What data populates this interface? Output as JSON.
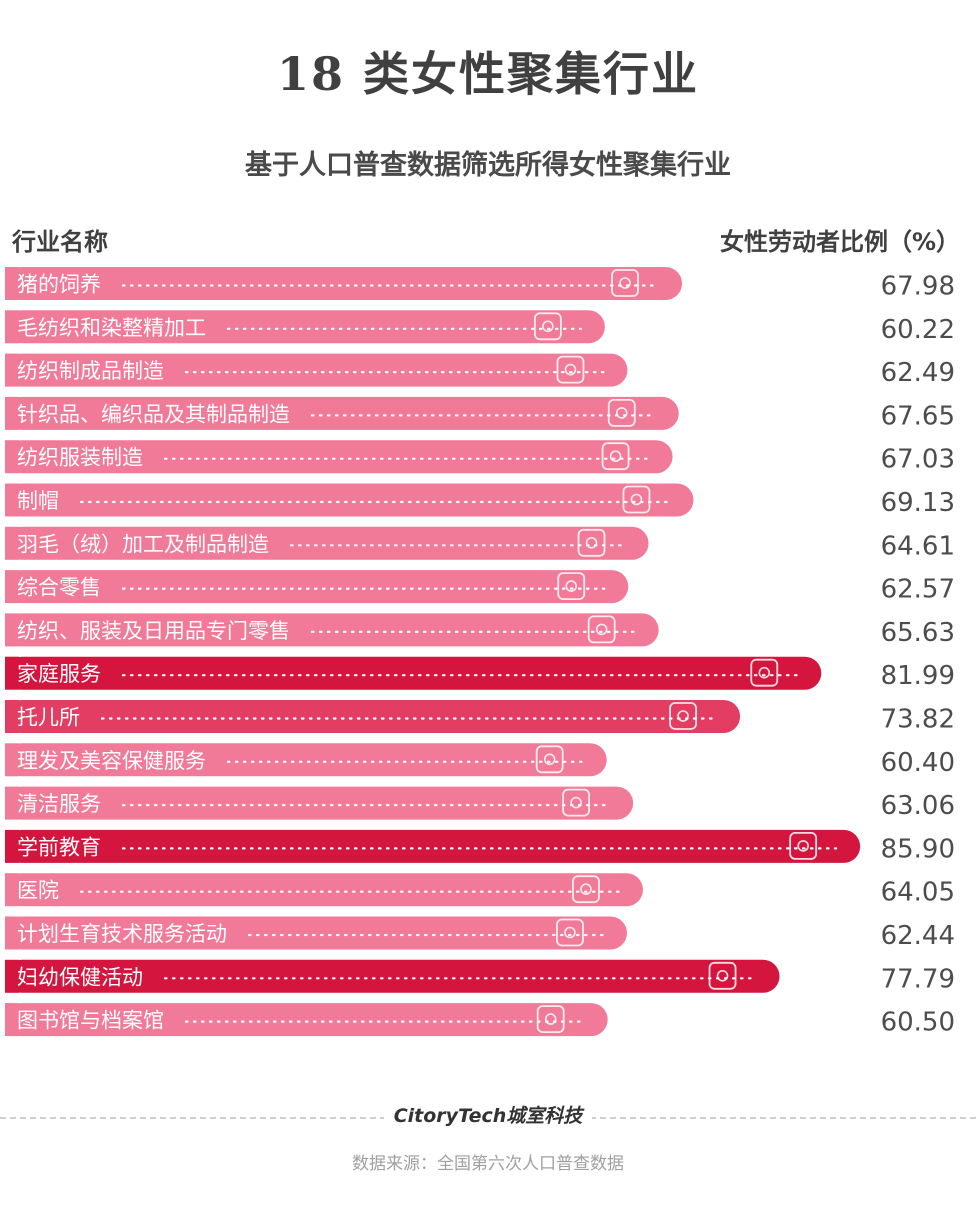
{
  "title": "18 类女性聚集行业",
  "subtitle": "基于人口普查数据筛选所得女性聚集行业",
  "column_left": "行业名称",
  "column_right": "女性劳动者比例（%）",
  "logo": "CitoryTech城室科技",
  "source": "数据来源：全国第六次人口普查数据",
  "colors": {
    "light": "#f07a97",
    "medium": "#e43d63",
    "dark": "#d4163e",
    "dots": "#ffffff"
  },
  "chart_data": {
    "type": "bar",
    "orientation": "horizontal",
    "categories": [
      "猪的饲养",
      "毛纺织和染整精加工",
      "纺织制成品制造",
      "针织品、编织品及其制品制造",
      "纺织服装制造",
      "制帽",
      "羽毛（绒）加工及制品制造",
      "综合零售",
      "纺织、服装及日用品专门零售",
      "家庭服务",
      "托儿所",
      "理发及美容保健服务",
      "清洁服务",
      "学前教育",
      "医院",
      "计划生育技术服务活动",
      "妇幼保健活动",
      "图书馆与档案馆"
    ],
    "values": [
      67.98,
      60.22,
      62.49,
      67.65,
      67.03,
      69.13,
      64.61,
      62.57,
      65.63,
      81.99,
      73.82,
      60.4,
      63.06,
      85.9,
      64.05,
      62.44,
      77.79,
      60.5
    ],
    "value_labels": [
      "67.98",
      "60.22",
      "62.49",
      "67.65",
      "67.03",
      "69.13",
      "64.61",
      "62.57",
      "65.63",
      "81.99",
      "73.82",
      "60.40",
      "63.06",
      "85.90",
      "64.05",
      "62.44",
      "77.79",
      "60.50"
    ],
    "icons": [
      "pig-icon",
      "machine-icon",
      "button-icon",
      "yarn-icon",
      "pants-icon",
      "hat-icon",
      "feather-icon",
      "shop-icon",
      "store-icon",
      "family-icon",
      "children-icon",
      "scissors-icon",
      "cleaner-icon",
      "classroom-icon",
      "hospital-icon",
      "pregnant-icon",
      "stroller-icon",
      "library-icon"
    ]
  }
}
